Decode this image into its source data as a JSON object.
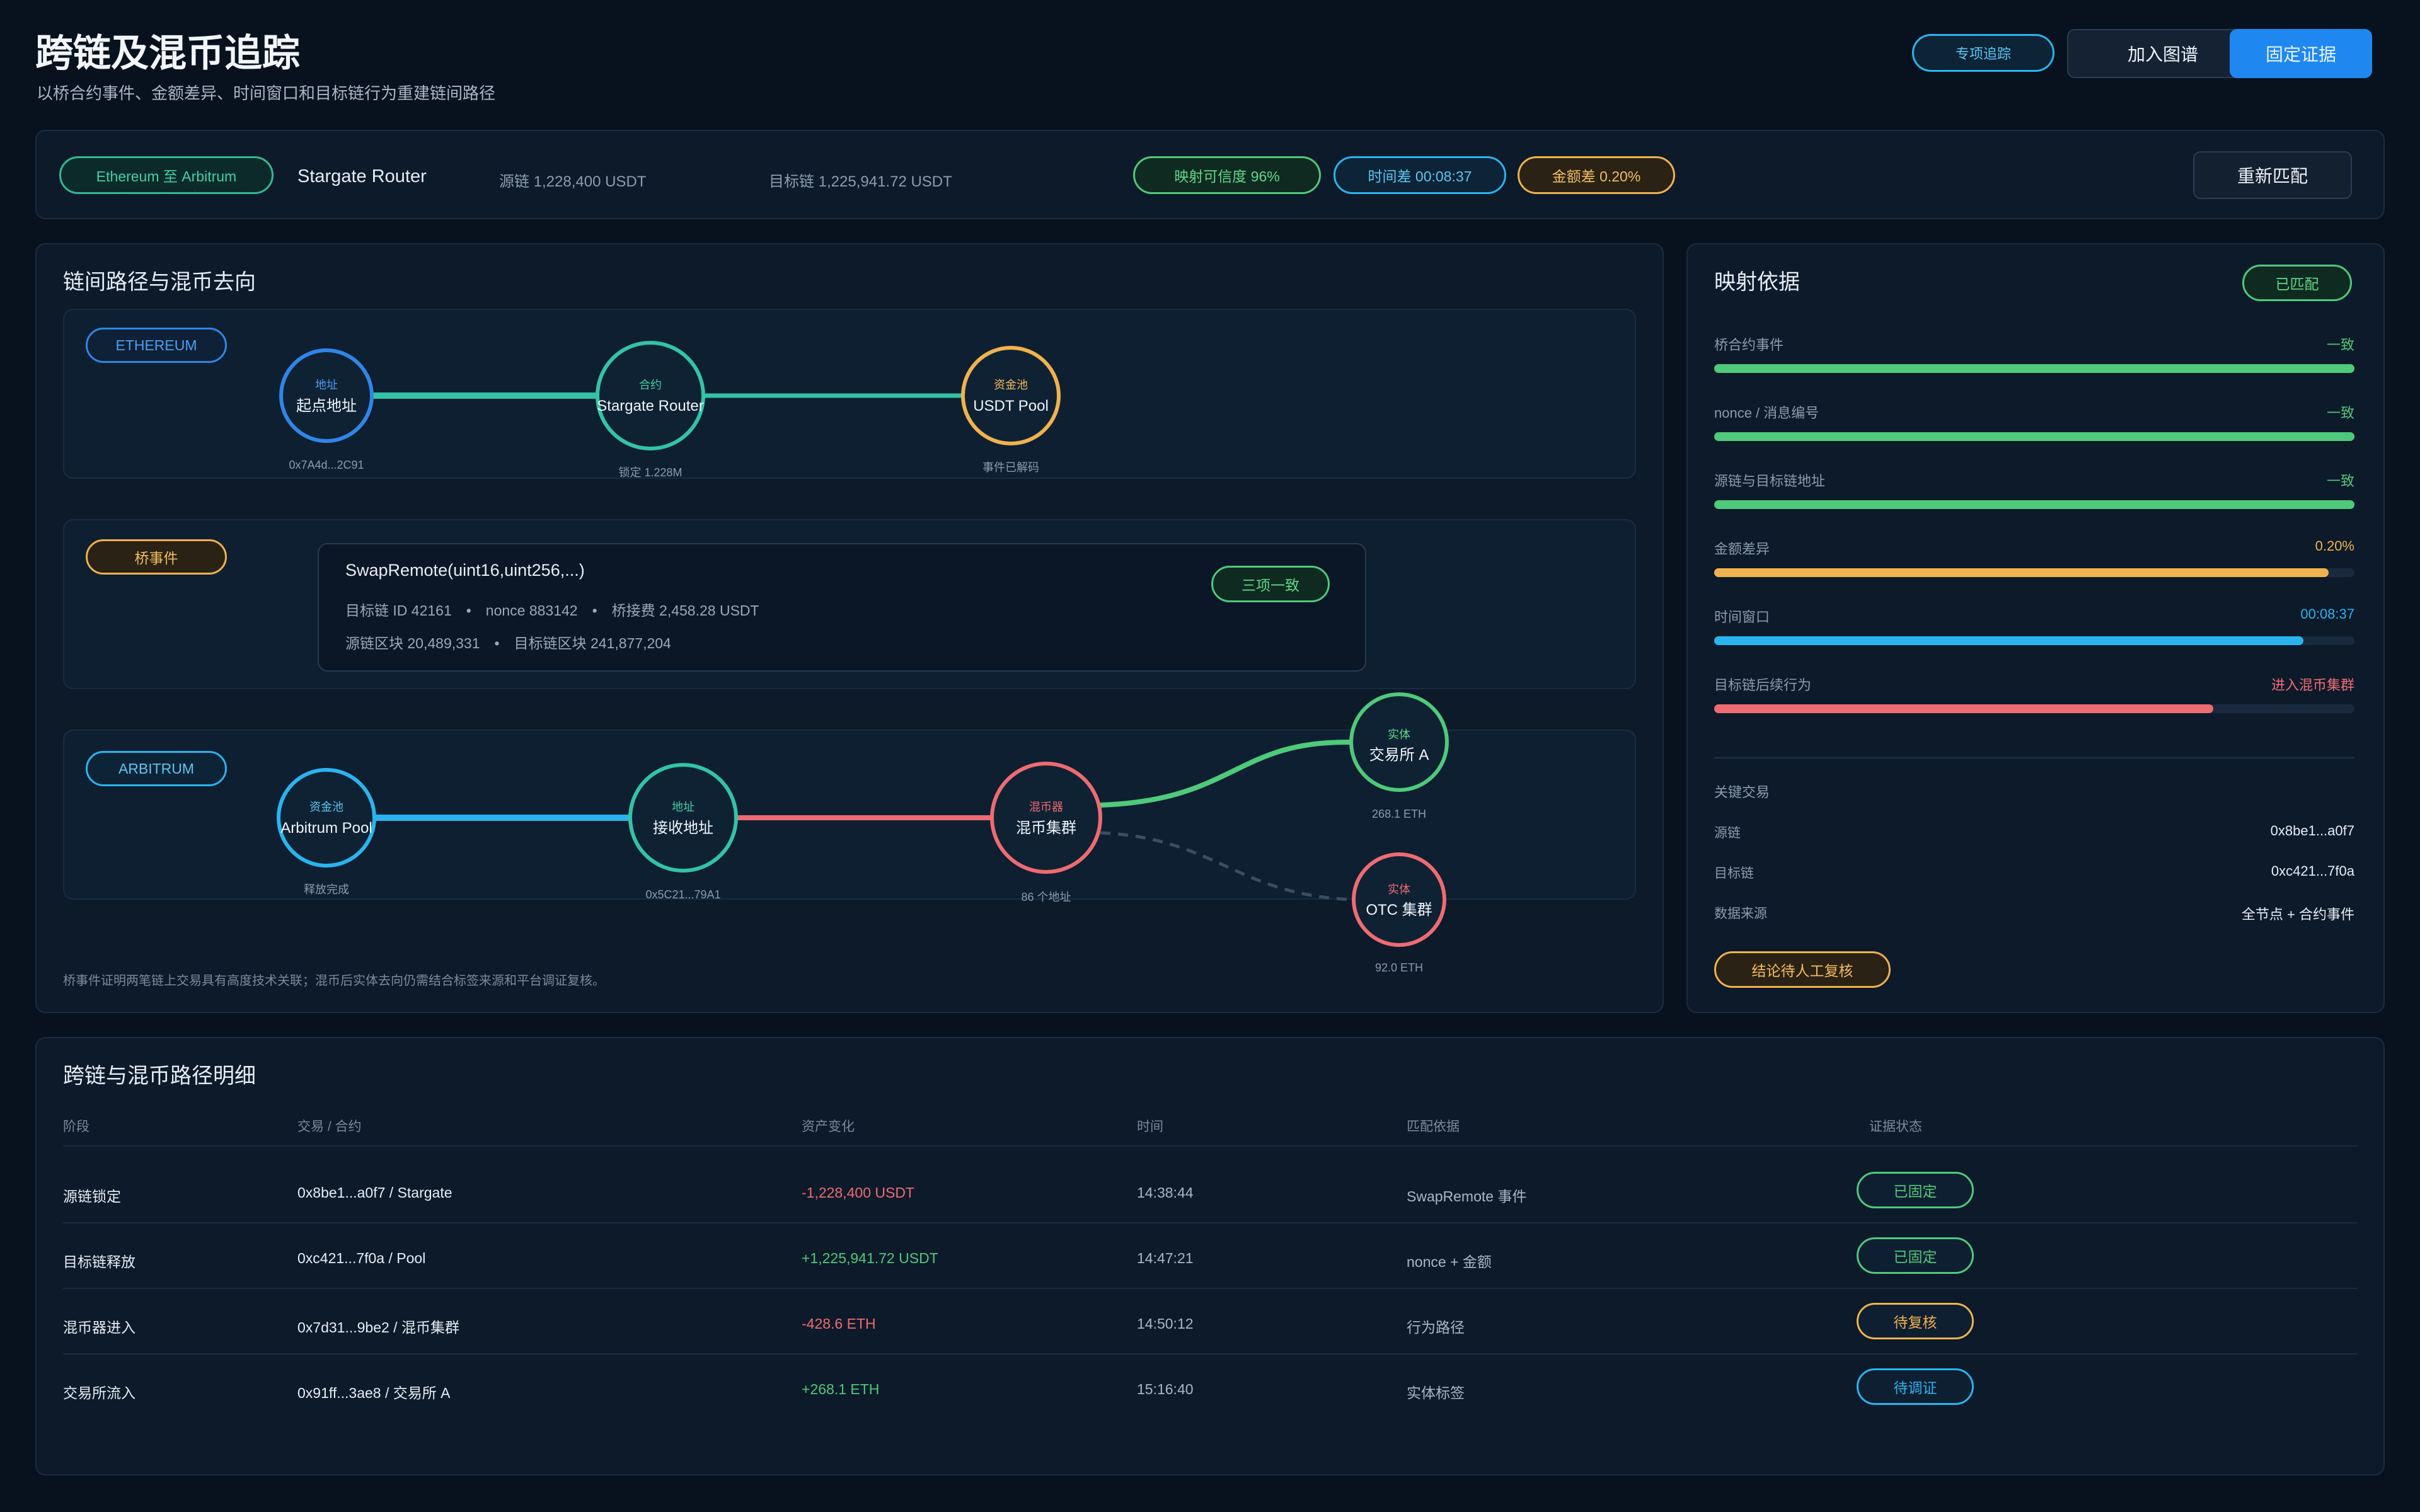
{
  "header": {
    "title": "跨链及混币追踪",
    "subtitle": "以桥合约事件、金额差异、时间窗口和目标链行为重建链间路径",
    "btn_track": "专项追踪",
    "btn_graph": "加入图谱",
    "btn_fix": "固定证据"
  },
  "summary": {
    "route": "Ethereum 至 Arbitrum",
    "router": "Stargate Router",
    "source": "源链 1,228,400 USDT",
    "target": "目标链 1,225,941.72 USDT",
    "confidence": "映射可信度 96%",
    "time_diff": "时间差 00:08:37",
    "amount_diff": "金额差 0.20%",
    "rematch": "重新匹配"
  },
  "graph": {
    "title": "链间路径与混币去向",
    "eth_tag": "ETHEREUM",
    "event_tag": "桥事件",
    "arb_tag": "ARBITRUM",
    "nodes": {
      "origin": {
        "type": "地址",
        "name": "起点地址",
        "caption": "0x7A4d...2C91"
      },
      "router": {
        "type": "合约",
        "name": "Stargate Router",
        "caption": "锁定 1.228M"
      },
      "usdt_pool": {
        "type": "资金池",
        "name": "USDT Pool",
        "caption": "事件已解码"
      },
      "arb_pool": {
        "type": "资金池",
        "name": "Arbitrum Pool",
        "caption": "释放完成"
      },
      "receiver": {
        "type": "地址",
        "name": "接收地址",
        "caption": "0x5C21...79A1"
      },
      "mixer": {
        "type": "混币器",
        "name": "混币集群",
        "caption": "86 个地址"
      },
      "exchange": {
        "type": "实体",
        "name": "交易所 A",
        "caption": "268.1 ETH"
      },
      "otc": {
        "type": "实体",
        "name": "OTC 集群",
        "caption": "92.0 ETH"
      }
    },
    "event": {
      "signature": "SwapRemote(uint16,uint256,...)",
      "line1": "目标链 ID 42161　•　nonce 883142　•　桥接费 2,458.28 USDT",
      "line2": "源链区块 20,489,331　•　目标链区块 241,877,204",
      "badge": "三项一致"
    },
    "footnote": "桥事件证明两笔链上交易具有高度技术关联；混币后实体去向仍需结合标签来源和平台调证复核。"
  },
  "mapping": {
    "title": "映射依据",
    "badge": "已匹配",
    "items": [
      {
        "label": "桥合约事件",
        "value": "一致",
        "pct": 100,
        "color": "#4fc97a"
      },
      {
        "label": "nonce / 消息编号",
        "value": "一致",
        "pct": 100,
        "color": "#4fc97a"
      },
      {
        "label": "源链与目标链地址",
        "value": "一致",
        "pct": 100,
        "color": "#4fc97a"
      },
      {
        "label": "金额差异",
        "value": "0.20%",
        "pct": 96,
        "color": "#f0b24e"
      },
      {
        "label": "时间窗口",
        "value": "00:08:37",
        "pct": 92,
        "color": "#2ab4ee"
      },
      {
        "label": "目标链后续行为",
        "value": "进入混币集群",
        "pct": 78,
        "color": "#ee6b72"
      }
    ],
    "key_title": "关键交易",
    "kv": [
      {
        "k": "源链",
        "v": "0x8be1...a0f7"
      },
      {
        "k": "目标链",
        "v": "0xc421...7f0a"
      },
      {
        "k": "数据来源",
        "v": "全节点 + 合约事件"
      }
    ],
    "pending": "结论待人工复核"
  },
  "table": {
    "title": "跨链与混币路径明细",
    "headers": [
      "阶段",
      "交易 / 合约",
      "资产变化",
      "时间",
      "匹配依据",
      "证据状态"
    ],
    "rows": [
      {
        "stage": "源链锁定",
        "tx": "0x8be1...a0f7 / Stargate",
        "change": "-1,228,400 USDT",
        "change_color": "#ee6b72",
        "time": "14:38:44",
        "basis": "SwapRemote 事件",
        "status": "已固定",
        "status_color": "#4fc97a"
      },
      {
        "stage": "目标链释放",
        "tx": "0xc421...7f0a / Pool",
        "change": "+1,225,941.72 USDT",
        "change_color": "#4fc97a",
        "time": "14:47:21",
        "basis": "nonce + 金额",
        "status": "已固定",
        "status_color": "#4fc97a"
      },
      {
        "stage": "混币器进入",
        "tx": "0x7d31...9be2 / 混币集群",
        "change": "-428.6 ETH",
        "change_color": "#ee6b72",
        "time": "14:50:12",
        "basis": "行为路径",
        "status": "待复核",
        "status_color": "#f0b24e"
      },
      {
        "stage": "交易所流入",
        "tx": "0x91ff...3ae8 / 交易所 A",
        "change": "+268.1 ETH",
        "change_color": "#4fc97a",
        "time": "15:16:40",
        "basis": "实体标签",
        "status": "待调证",
        "status_color": "#2ab4ee"
      }
    ]
  }
}
